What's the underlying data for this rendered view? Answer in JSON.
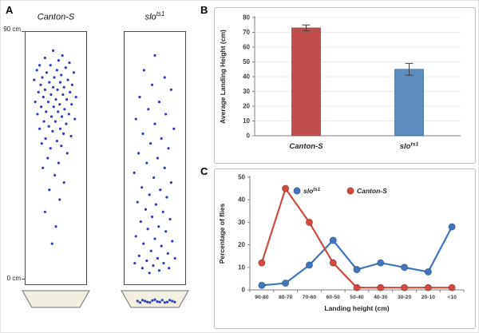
{
  "figure": {
    "panel_a_label": "A",
    "panel_b_label": "B",
    "panel_c_label": "C"
  },
  "panelA": {
    "scale_top": "90 cm",
    "scale_bottom": "0 cm",
    "dot_color": "#2f3fbf",
    "dish_color": "#f2eee0",
    "tubes": [
      {
        "title_base": "Canton-S",
        "title_sup": "",
        "dots": [
          [
            0.45,
            0.06
          ],
          [
            0.62,
            0.08
          ],
          [
            0.3,
            0.09
          ],
          [
            0.55,
            0.1
          ],
          [
            0.75,
            0.11
          ],
          [
            0.2,
            0.12
          ],
          [
            0.4,
            0.12
          ],
          [
            0.68,
            0.13
          ],
          [
            0.15,
            0.14
          ],
          [
            0.52,
            0.14
          ],
          [
            0.83,
            0.15
          ],
          [
            0.33,
            0.15
          ],
          [
            0.6,
            0.16
          ],
          [
            0.25,
            0.17
          ],
          [
            0.47,
            0.17
          ],
          [
            0.72,
            0.18
          ],
          [
            0.1,
            0.18
          ],
          [
            0.38,
            0.19
          ],
          [
            0.58,
            0.19
          ],
          [
            0.8,
            0.2
          ],
          [
            0.22,
            0.2
          ],
          [
            0.45,
            0.21
          ],
          [
            0.65,
            0.21
          ],
          [
            0.3,
            0.22
          ],
          [
            0.53,
            0.22
          ],
          [
            0.76,
            0.23
          ],
          [
            0.18,
            0.23
          ],
          [
            0.41,
            0.24
          ],
          [
            0.63,
            0.24
          ],
          [
            0.87,
            0.25
          ],
          [
            0.27,
            0.25
          ],
          [
            0.5,
            0.26
          ],
          [
            0.7,
            0.26
          ],
          [
            0.12,
            0.27
          ],
          [
            0.36,
            0.27
          ],
          [
            0.57,
            0.28
          ],
          [
            0.79,
            0.28
          ],
          [
            0.23,
            0.29
          ],
          [
            0.46,
            0.29
          ],
          [
            0.66,
            0.3
          ],
          [
            0.32,
            0.31
          ],
          [
            0.54,
            0.31
          ],
          [
            0.74,
            0.32
          ],
          [
            0.16,
            0.32
          ],
          [
            0.42,
            0.33
          ],
          [
            0.61,
            0.33
          ],
          [
            0.85,
            0.34
          ],
          [
            0.28,
            0.35
          ],
          [
            0.49,
            0.35
          ],
          [
            0.69,
            0.36
          ],
          [
            0.37,
            0.37
          ],
          [
            0.58,
            0.38
          ],
          [
            0.2,
            0.38
          ],
          [
            0.44,
            0.39
          ],
          [
            0.64,
            0.4
          ],
          [
            0.78,
            0.41
          ],
          [
            0.31,
            0.42
          ],
          [
            0.52,
            0.43
          ],
          [
            0.24,
            0.44
          ],
          [
            0.6,
            0.45
          ],
          [
            0.4,
            0.46
          ],
          [
            0.71,
            0.48
          ],
          [
            0.35,
            0.5
          ],
          [
            0.55,
            0.52
          ],
          [
            0.26,
            0.54
          ],
          [
            0.48,
            0.57
          ],
          [
            0.65,
            0.6
          ],
          [
            0.38,
            0.63
          ],
          [
            0.57,
            0.67
          ],
          [
            0.3,
            0.72
          ],
          [
            0.5,
            0.78
          ],
          [
            0.43,
            0.85
          ]
        ],
        "dish_dots": []
      },
      {
        "title_base": "slo",
        "title_sup": "ts1",
        "dots": [
          [
            0.5,
            0.08
          ],
          [
            0.3,
            0.14
          ],
          [
            0.68,
            0.17
          ],
          [
            0.45,
            0.2
          ],
          [
            0.8,
            0.22
          ],
          [
            0.22,
            0.25
          ],
          [
            0.58,
            0.27
          ],
          [
            0.38,
            0.3
          ],
          [
            0.7,
            0.32
          ],
          [
            0.15,
            0.34
          ],
          [
            0.5,
            0.36
          ],
          [
            0.85,
            0.38
          ],
          [
            0.28,
            0.4
          ],
          [
            0.62,
            0.42
          ],
          [
            0.42,
            0.44
          ],
          [
            0.75,
            0.46
          ],
          [
            0.2,
            0.48
          ],
          [
            0.55,
            0.5
          ],
          [
            0.35,
            0.52
          ],
          [
            0.68,
            0.54
          ],
          [
            0.12,
            0.56
          ],
          [
            0.48,
            0.58
          ],
          [
            0.8,
            0.6
          ],
          [
            0.26,
            0.62
          ],
          [
            0.6,
            0.63
          ],
          [
            0.4,
            0.65
          ],
          [
            0.72,
            0.66
          ],
          [
            0.18,
            0.68
          ],
          [
            0.52,
            0.69
          ],
          [
            0.33,
            0.71
          ],
          [
            0.65,
            0.72
          ],
          [
            0.45,
            0.74
          ],
          [
            0.78,
            0.75
          ],
          [
            0.24,
            0.76
          ],
          [
            0.57,
            0.78
          ],
          [
            0.37,
            0.79
          ],
          [
            0.7,
            0.8
          ],
          [
            0.15,
            0.82
          ],
          [
            0.5,
            0.83
          ],
          [
            0.82,
            0.84
          ],
          [
            0.29,
            0.85
          ],
          [
            0.62,
            0.86
          ],
          [
            0.43,
            0.88
          ],
          [
            0.74,
            0.89
          ],
          [
            0.21,
            0.9
          ],
          [
            0.55,
            0.91
          ],
          [
            0.35,
            0.92
          ],
          [
            0.66,
            0.93
          ],
          [
            0.47,
            0.94
          ],
          [
            0.27,
            0.95
          ],
          [
            0.58,
            0.96
          ],
          [
            0.4,
            0.97
          ],
          [
            0.13,
            0.93
          ],
          [
            0.87,
            0.91
          ],
          [
            0.76,
            0.95
          ]
        ],
        "dish_dots": [
          [
            0.15,
            0.5
          ],
          [
            0.25,
            0.4
          ],
          [
            0.35,
            0.6
          ],
          [
            0.45,
            0.45
          ],
          [
            0.55,
            0.55
          ],
          [
            0.65,
            0.4
          ],
          [
            0.75,
            0.6
          ],
          [
            0.85,
            0.5
          ],
          [
            0.2,
            0.65
          ],
          [
            0.5,
            0.35
          ],
          [
            0.7,
            0.65
          ],
          [
            0.3,
            0.5
          ],
          [
            0.6,
            0.6
          ],
          [
            0.8,
            0.4
          ],
          [
            0.4,
            0.65
          ],
          [
            0.9,
            0.6
          ]
        ]
      }
    ]
  },
  "chart_data": [
    {
      "type": "bar",
      "title": "",
      "ylabel": "Average Landing Height (cm)",
      "ylim": [
        0,
        80
      ],
      "ytick_step": 10,
      "grid": true,
      "categories": [
        {
          "base": "Canton-S",
          "sup": ""
        },
        {
          "base": "slo",
          "sup": "ts1"
        }
      ],
      "values": [
        73,
        45
      ],
      "errors": [
        2,
        4
      ],
      "bar_colors": [
        "#C0504D",
        "#5B8DC1"
      ],
      "bar_strokes": [
        "#9A403E",
        "#44699A"
      ]
    },
    {
      "type": "line",
      "title": "",
      "ylabel": "Percentage of flies",
      "xlabel": "Landing height (cm)",
      "ylim": [
        0,
        50
      ],
      "ytick_step": 10,
      "grid": false,
      "legend_position": "top",
      "categories": [
        "90-80",
        "80-70",
        "70-60",
        "60-50",
        "50-40",
        "40-30",
        "30-20",
        "20-10",
        "<10"
      ],
      "series": [
        {
          "name_base": "slo",
          "name_sup": "ts1",
          "color": "#4176BE",
          "values": [
            2,
            3,
            11,
            22,
            9,
            12,
            10,
            8,
            28
          ]
        },
        {
          "name_base": "Canton-S",
          "name_sup": "",
          "color": "#D04A42",
          "values": [
            12,
            45,
            30,
            12,
            1,
            1,
            1,
            1,
            1
          ]
        }
      ]
    }
  ]
}
